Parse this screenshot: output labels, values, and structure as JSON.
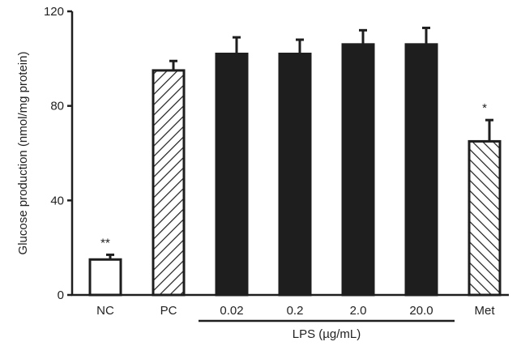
{
  "chart_data": {
    "type": "bar",
    "categories": [
      "NC",
      "PC",
      "0.02",
      "0.2",
      "2.0",
      "20.0",
      "Met"
    ],
    "values": [
      15,
      95,
      102,
      102,
      106,
      106,
      65
    ],
    "errors": [
      2,
      4,
      7,
      6,
      6,
      7,
      9
    ],
    "significance": [
      "**",
      "",
      "",
      "",
      "",
      "",
      "*"
    ],
    "fills": [
      "white",
      "hatch",
      "#1e1e1e",
      "#1e1e1e",
      "#1e1e1e",
      "#1e1e1e",
      "hatch-back"
    ],
    "ylabel": "Glucose production (nmol/mg protein)",
    "ylim": [
      0,
      120
    ],
    "yticks": [
      "0",
      "40",
      "80",
      "120"
    ],
    "group": {
      "label": "LPS (µg/mL)",
      "from": 2,
      "to": 5
    },
    "grid": false,
    "legend": "none"
  }
}
